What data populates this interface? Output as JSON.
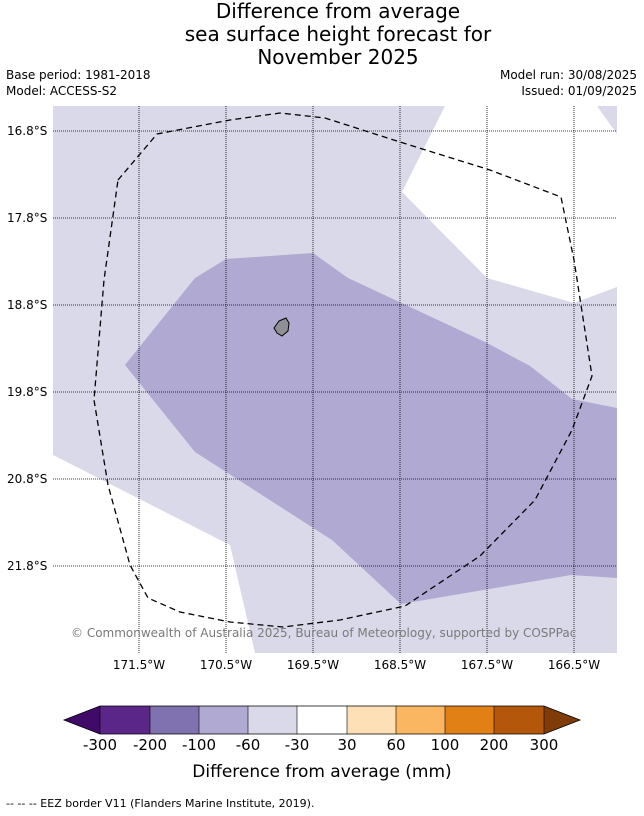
{
  "header": {
    "title_line1": "Difference from average",
    "title_line2": "sea surface height forecast for",
    "title_line3": "November 2025",
    "base_period": "Base period: 1981-2018",
    "model": "Model: ACCESS-S2",
    "model_run": "Model run: 30/08/2025",
    "issued": "Issued: 01/09/2025"
  },
  "map": {
    "lat_labels": [
      "16.8°S",
      "17.8°S",
      "18.8°S",
      "19.8°S",
      "20.8°S",
      "21.8°S"
    ],
    "lon_labels": [
      "171.5°W",
      "170.5°W",
      "169.5°W",
      "168.5°W",
      "167.5°W",
      "166.5°W"
    ],
    "copyright": "© Commonwealth of Australia 2025, Bureau of Meteorology, supported by COSPPac",
    "colors": {
      "band_m60_m30": "#d9d9ea",
      "band_m100_m60": "#b0a9d1",
      "neutral": "#ffffff",
      "land": "#8f8f96",
      "grid": "#000000"
    }
  },
  "colorbar": {
    "ticks": [
      "-300",
      "-200",
      "-100",
      "-60",
      "-30",
      "30",
      "60",
      "100",
      "200",
      "300"
    ],
    "label": "Difference from average (mm)",
    "colors": [
      "#3f0a68",
      "#5a2688",
      "#8072b0",
      "#b0a9d1",
      "#d9d9ea",
      "#ffffff",
      "#fde0b6",
      "#fbb661",
      "#e08015",
      "#b4570a",
      "#7f3b08"
    ]
  },
  "footer": {
    "legend": "--  --  -- EEZ border V11 (Flanders Marine Institute, 2019)."
  }
}
